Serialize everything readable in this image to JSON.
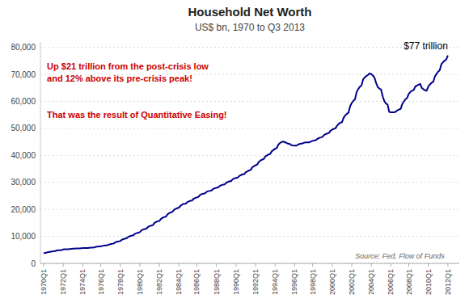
{
  "chart_data": {
    "type": "line",
    "title": "Household Net Worth",
    "subtitle": "US$ bn, 1970 to Q3 2013",
    "color": "#00008B",
    "grid": true,
    "annotations": [
      {
        "text": "$77 trillion",
        "color": "#000000"
      },
      {
        "text": "Up $21 trillion from the post-crisis low\nand 12% above its pre-crisis peak!",
        "color": "#CC0000"
      },
      {
        "text": "That was the result of Quantitative Easing!",
        "color": "#CC0000"
      }
    ],
    "source": "Source: Fed, Flow of Funds",
    "ylim": [
      0,
      82000
    ],
    "yticks": [
      0,
      {
        "value": 10000,
        "label": "10,000"
      },
      {
        "value": 20000,
        "label": "20,000"
      },
      {
        "value": 30000,
        "label": "30,000"
      },
      {
        "value": 40000,
        "label": "40,000"
      },
      {
        "value": 50000,
        "label": "50,000"
      },
      {
        "value": 60000,
        "label": "60,000"
      },
      {
        "value": 70000,
        "label": "70,000"
      },
      {
        "value": 80000,
        "label": "80,000"
      }
    ],
    "categories": [
      "1970Q1",
      null,
      null,
      null,
      null,
      null,
      null,
      null,
      null,
      null,
      null,
      null,
      "1972Q1",
      null,
      null,
      null,
      null,
      null,
      null,
      null,
      null,
      null,
      null,
      null,
      "1974Q1",
      null,
      null,
      null,
      null,
      null,
      null,
      null,
      null,
      null,
      null,
      "1976Q1",
      null,
      null,
      null,
      null,
      null,
      null,
      null,
      null,
      null,
      null,
      null,
      "1978Q1",
      null,
      null,
      null,
      null,
      null,
      null,
      null,
      null,
      null,
      null,
      null,
      "1980Q1",
      null,
      null,
      null,
      null,
      null,
      null,
      null,
      null,
      null,
      null,
      null,
      "1982Q1",
      null,
      null,
      null,
      null,
      null,
      null,
      null,
      null,
      null,
      null,
      null,
      "1984Q1",
      null,
      null,
      null,
      null,
      null,
      null,
      null,
      null,
      null,
      null,
      "1986Q1",
      null,
      null,
      null,
      null,
      null,
      null,
      null,
      null,
      null,
      null,
      null,
      "1988Q1",
      null,
      null,
      null,
      null,
      null,
      null,
      null,
      null,
      null,
      null,
      null,
      "1990Q1",
      null,
      null,
      null,
      null,
      null,
      null,
      null,
      null,
      null,
      null,
      null,
      "1992Q1",
      null,
      null,
      null,
      null,
      null,
      null,
      null,
      null,
      null,
      null,
      null,
      "1994Q1",
      null,
      null,
      null,
      null,
      null,
      null,
      null,
      null,
      null,
      null,
      null,
      "1996Q1",
      null,
      null,
      null,
      null,
      null,
      null,
      null,
      null,
      null,
      null,
      "1998Q1",
      null,
      null,
      null,
      null,
      null,
      null,
      null,
      null,
      null,
      null,
      null,
      "2000Q1",
      null,
      null,
      null,
      null,
      null,
      null,
      null,
      null,
      null,
      null,
      null,
      "2002Q1",
      null,
      null,
      null,
      null,
      null,
      null,
      null,
      null,
      null,
      null,
      null,
      "2004Q1",
      null,
      null,
      null,
      null,
      null,
      null,
      null,
      null,
      null,
      null,
      null,
      "2006Q1",
      null,
      null,
      null,
      null,
      null,
      null,
      null,
      null,
      null,
      null,
      "2008Q1",
      null,
      null,
      null,
      null,
      null,
      null,
      null,
      null,
      null,
      null,
      null,
      "2010Q1",
      null,
      null,
      null,
      null,
      null,
      null,
      null,
      null,
      null,
      null,
      null,
      "2012Q1"
    ],
    "values": [
      3771,
      3896,
      4021,
      4200,
      4296,
      4380,
      4460,
      4575,
      4771,
      4840,
      4900,
      4950,
      5152,
      5200,
      5240,
      5258,
      5345,
      5390,
      5440,
      5496,
      5551,
      5563,
      5572,
      5578,
      5685,
      5688,
      5689,
      5690,
      5781,
      5820,
      5860,
      5897,
      6111,
      6200,
      6265,
      6311,
      6471,
      6560,
      6630,
      6680,
      6977,
      7100,
      7230,
      7366,
      7809,
      8000,
      8145,
      8265,
      8773,
      9000,
      9180,
      9329,
      9854,
      10100,
      10280,
      10401,
      10971,
      11200,
      11390,
      11553,
      12214,
      12530,
      12700,
      12847,
      13485,
      13800,
      14000,
      14188,
      14994,
      15350,
      15600,
      15736,
      16524,
      16900,
      17150,
      17320,
      18178,
      18600,
      18900,
      19077,
      19836,
      20200,
      20480,
      20631,
      21370,
      21780,
      22100,
      22033,
      22619,
      22940,
      23200,
      23261,
      23948,
      24200,
      24430,
      24649,
      25382,
      25640,
      25840,
      25966,
      26505,
      26740,
      26900,
      27012,
      27583,
      27850,
      28000,
      28126,
      28686,
      28950,
      29150,
      29242,
      29867,
      30150,
      30380,
      30524,
      31158,
      31450,
      31650,
      31769,
      32358,
      32700,
      33000,
      33016,
      33772,
      34100,
      34420,
      34609,
      35571,
      36000,
      36350,
      36581,
      37629,
      38100,
      38450,
      38622,
      39629,
      40000,
      40330,
      40553,
      41566,
      42000,
      42450,
      42720,
      44020,
      44600,
      45000,
      45143,
      44891,
      44600,
      44350,
      44247,
      43783,
      43680,
      43620,
      43590,
      43984,
      44200,
      44380,
      44462,
      44765,
      44800,
      44815,
      44820,
      45160,
      45380,
      45550,
      45638,
      46168,
      46450,
      46650,
      46793,
      47523,
      47880,
      48100,
      48283,
      49104,
      49550,
      49820,
      50013,
      51006,
      51650,
      52100,
      52283,
      53900,
      54800,
      55400,
      55773,
      58154,
      59400,
      60200,
      60774,
      63461,
      64600,
      65400,
      65913,
      68175,
      68900,
      69400,
      69800,
      70376,
      70100,
      69600,
      68737,
      66755,
      65300,
      64700,
      64440,
      61858,
      60100,
      59200,
      58867,
      56136,
      55980,
      55970,
      55977,
      56200,
      56700,
      57000,
      57200,
      59048,
      60000,
      60800,
      61300,
      62800,
      63500,
      64000,
      64200,
      65500,
      65900,
      66200,
      66500,
      65000,
      64500,
      64100,
      64000,
      65500,
      66300,
      66900,
      67200,
      69200,
      70200,
      71000,
      71500,
      73800,
      74500,
      75100,
      75500,
      77000
    ]
  }
}
